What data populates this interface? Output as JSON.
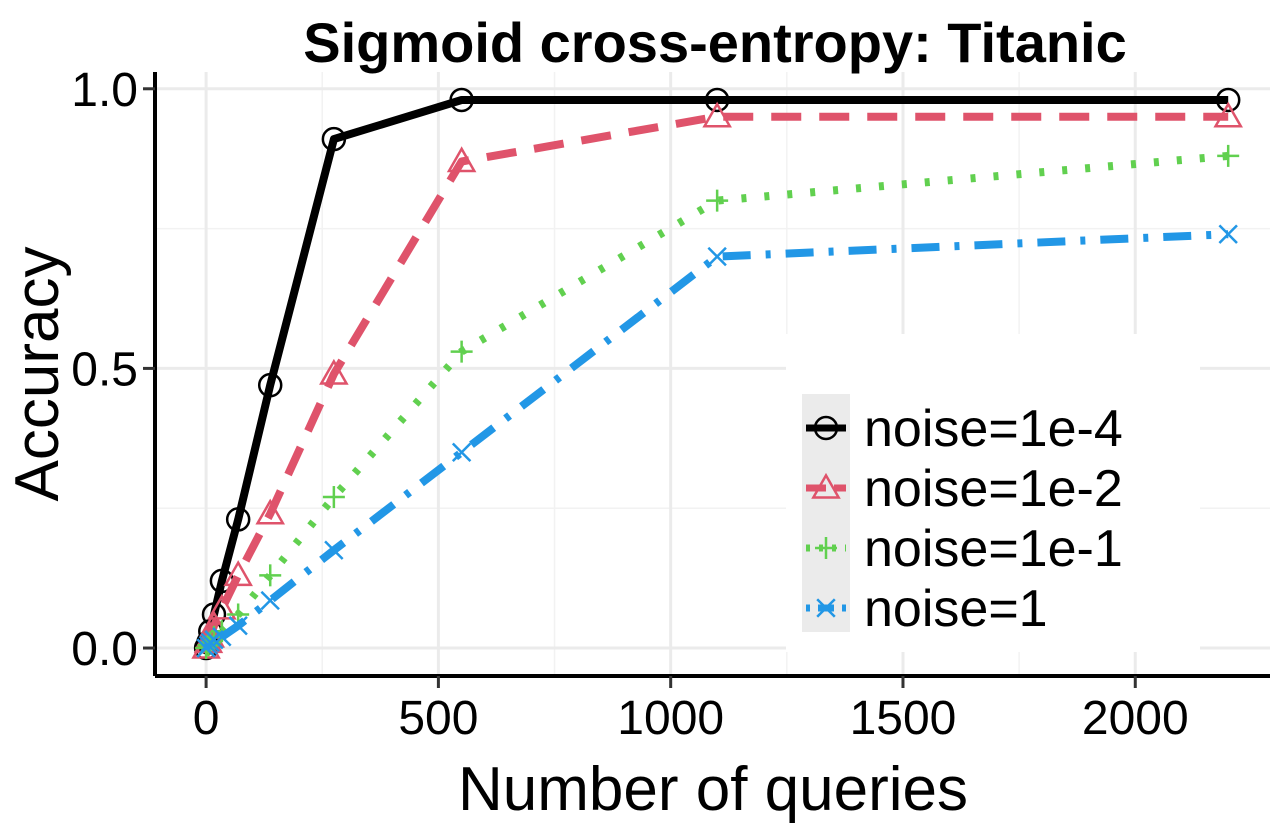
{
  "chart_data": {
    "type": "line",
    "title": "Sigmoid cross-entropy: Titanic",
    "xlabel": "Number of queries",
    "ylabel": "Accuracy",
    "xlim": [
      -110,
      2290
    ],
    "ylim": [
      -0.05,
      1.03
    ],
    "xticks": [
      0,
      500,
      1000,
      1500,
      2000
    ],
    "xtick_labels": [
      "0",
      "500",
      "1000",
      "1500",
      "2000"
    ],
    "yticks": [
      0.0,
      0.5,
      1.0
    ],
    "ytick_labels": [
      "0.0",
      "0.5",
      "1.0"
    ],
    "grid": true,
    "legend_position": "bottom-right",
    "series": [
      {
        "name": "noise=1e-4",
        "color": "#000000",
        "marker": "circle",
        "dash": "solid",
        "x": [
          0,
          5,
          9,
          17,
          34,
          69,
          138,
          275,
          550,
          1100,
          2200
        ],
        "y": [
          0.0,
          0.01,
          0.03,
          0.06,
          0.12,
          0.23,
          0.47,
          0.91,
          0.98,
          0.98,
          0.98
        ]
      },
      {
        "name": "noise=1e-2",
        "color": "#DF536B",
        "marker": "triangle",
        "dash": "dashed",
        "x": [
          0,
          5,
          9,
          17,
          34,
          69,
          138,
          275,
          550,
          1100,
          2200
        ],
        "y": [
          0.0,
          0.01,
          0.02,
          0.04,
          0.07,
          0.13,
          0.24,
          0.49,
          0.87,
          0.95,
          0.95
        ]
      },
      {
        "name": "noise=1e-1",
        "color": "#61D04F",
        "marker": "plus",
        "dash": "dotted",
        "x": [
          0,
          5,
          9,
          17,
          34,
          69,
          138,
          275,
          550,
          1100,
          2200
        ],
        "y": [
          0.0,
          0.005,
          0.01,
          0.02,
          0.03,
          0.06,
          0.13,
          0.27,
          0.53,
          0.8,
          0.88
        ]
      },
      {
        "name": "noise=1",
        "color": "#2297E6",
        "marker": "cross",
        "dash": "dotdash",
        "x": [
          0,
          5,
          9,
          17,
          34,
          69,
          138,
          275,
          550,
          1100,
          2200
        ],
        "y": [
          0.0,
          0.005,
          0.01,
          0.015,
          0.02,
          0.04,
          0.085,
          0.175,
          0.35,
          0.7,
          0.74
        ]
      }
    ]
  }
}
